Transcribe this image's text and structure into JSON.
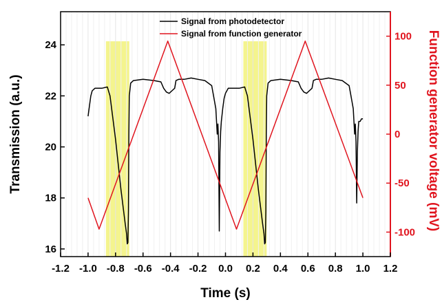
{
  "chart_data": {
    "type": "line",
    "xlabel": "Time (s)",
    "ylabel": "Transmission (a.u.)",
    "y2label": "Function generator voltage (mV)",
    "xlim": [
      -1.2,
      1.2
    ],
    "ylim": [
      15.7,
      25.3
    ],
    "y2lim": [
      -125,
      125
    ],
    "x_ticks": [
      "-1.2",
      "-1.0",
      "-0.8",
      "-0.6",
      "-0.4",
      "-0.2",
      "0.0",
      "0.2",
      "0.4",
      "0.6",
      "0.8",
      "1.0",
      "1.2"
    ],
    "y_ticks": [
      "16",
      "18",
      "20",
      "22",
      "24"
    ],
    "y2_ticks": [
      "-100",
      "-50",
      "0",
      "50",
      "100"
    ],
    "vertical_grid": true,
    "legend_position": "top-center",
    "colors": {
      "photodetector": "#000000",
      "generator": "#e0141e",
      "highlight": "#f2f27a"
    },
    "highlights": [
      {
        "x_start": -0.87,
        "x_end": -0.7
      },
      {
        "x_start": 0.13,
        "x_end": 0.3
      }
    ],
    "series": [
      {
        "name": "Signal from photodetector",
        "axis": "left",
        "x": [
          -1.0,
          -0.99,
          -0.98,
          -0.97,
          -0.95,
          -0.9,
          -0.86,
          -0.84,
          -0.8,
          -0.76,
          -0.73,
          -0.72,
          -0.715,
          -0.71,
          -0.706,
          -0.703,
          -0.7,
          -0.69,
          -0.67,
          -0.6,
          -0.52,
          -0.47,
          -0.45,
          -0.43,
          -0.41,
          -0.39,
          -0.37,
          -0.36,
          -0.34,
          -0.3,
          -0.25,
          -0.2,
          -0.15,
          -0.1,
          -0.07,
          -0.06,
          -0.055,
          -0.05,
          -0.045,
          -0.04,
          -0.035,
          -0.03,
          -0.02,
          -0.01,
          0.0,
          0.01,
          0.02,
          0.03,
          0.05,
          0.1,
          0.14,
          0.16,
          0.2,
          0.24,
          0.27,
          0.28,
          0.285,
          0.29,
          0.294,
          0.297,
          0.3,
          0.31,
          0.33,
          0.4,
          0.48,
          0.53,
          0.55,
          0.57,
          0.59,
          0.61,
          0.63,
          0.64,
          0.66,
          0.7,
          0.75,
          0.8,
          0.85,
          0.9,
          0.93,
          0.94,
          0.945,
          0.95,
          0.955,
          0.96,
          0.965,
          0.97,
          0.98,
          0.99,
          1.0
        ],
        "y": [
          21.2,
          21.6,
          22.0,
          22.2,
          22.3,
          22.3,
          22.35,
          22.0,
          20.3,
          18.3,
          17.0,
          16.6,
          16.2,
          16.25,
          17.5,
          20.5,
          22.0,
          22.5,
          22.6,
          22.65,
          22.6,
          22.55,
          22.3,
          22.15,
          22.1,
          22.2,
          22.3,
          22.6,
          22.65,
          22.65,
          22.7,
          22.65,
          22.6,
          22.4,
          21.5,
          20.5,
          20.9,
          20.2,
          16.7,
          19.8,
          20.6,
          21.0,
          21.5,
          21.9,
          22.1,
          22.2,
          22.3,
          22.3,
          22.3,
          22.3,
          22.35,
          22.0,
          20.3,
          18.3,
          17.0,
          16.6,
          16.2,
          16.25,
          17.5,
          20.5,
          22.0,
          22.5,
          22.6,
          22.65,
          22.6,
          22.55,
          22.3,
          22.15,
          22.1,
          22.2,
          22.3,
          22.6,
          22.65,
          22.65,
          22.7,
          22.65,
          22.6,
          22.4,
          21.5,
          20.5,
          20.9,
          20.2,
          17.8,
          19.8,
          20.6,
          21.0,
          21.0,
          21.1,
          21.1
        ]
      },
      {
        "name": "Signal from function generator",
        "axis": "right",
        "x": [
          -1.0,
          -0.92,
          -0.42,
          0.08,
          0.58,
          1.0
        ],
        "y": [
          -65,
          -97,
          95,
          -97,
          95,
          -65
        ]
      }
    ]
  }
}
